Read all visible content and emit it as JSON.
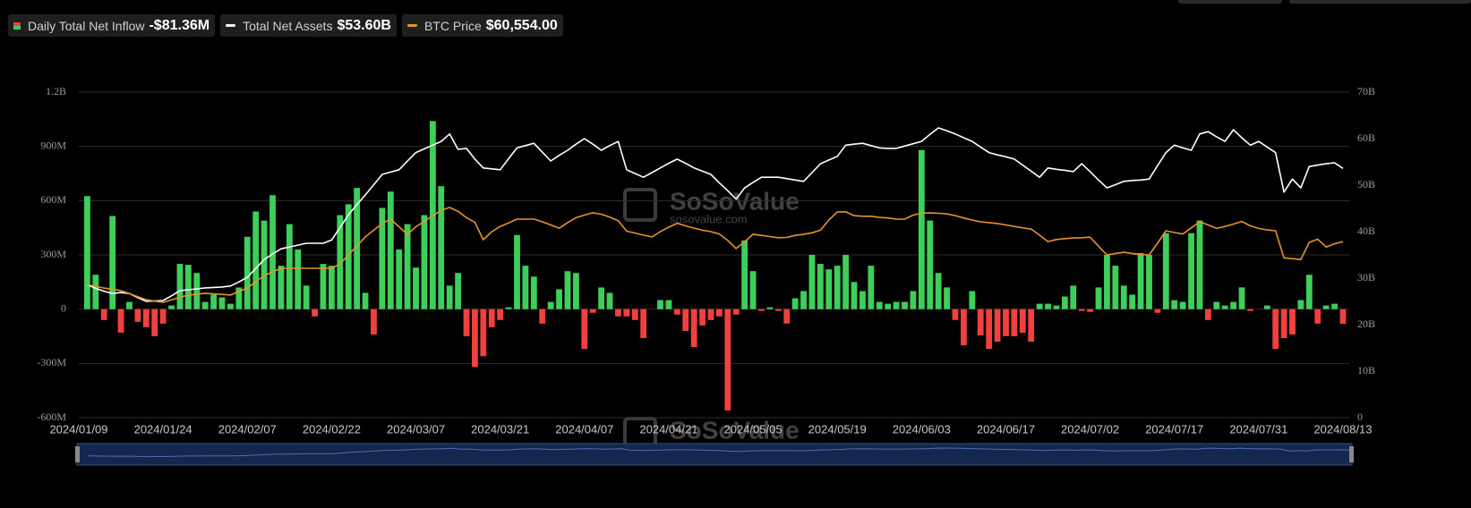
{
  "chart_data": {
    "type": "bar",
    "watermark": {
      "brand": "SoSoValue",
      "url": "sosovalue.com"
    },
    "categories": [
      "2024/01/09",
      null,
      null,
      null,
      null,
      null,
      null,
      null,
      null,
      null,
      "2024/01/24",
      null,
      null,
      null,
      null,
      null,
      null,
      null,
      null,
      null,
      "2024/02/07",
      null,
      null,
      null,
      null,
      null,
      null,
      null,
      null,
      null,
      "2024/02/22",
      null,
      null,
      null,
      null,
      null,
      null,
      null,
      null,
      null,
      "2024/03/07",
      null,
      null,
      null,
      null,
      null,
      null,
      null,
      null,
      null,
      "2024/03/21",
      null,
      null,
      null,
      null,
      null,
      null,
      null,
      null,
      null,
      "2024/04/07",
      null,
      null,
      null,
      null,
      null,
      null,
      null,
      null,
      null,
      "2024/04/21",
      null,
      null,
      null,
      null,
      null,
      null,
      null,
      null,
      null,
      "2024/05/05",
      null,
      null,
      null,
      null,
      null,
      null,
      null,
      null,
      null,
      "2024/05/19",
      null,
      null,
      null,
      null,
      null,
      null,
      null,
      null,
      null,
      "2024/06/03",
      null,
      null,
      null,
      null,
      null,
      null,
      null,
      null,
      null,
      "2024/06/17",
      null,
      null,
      null,
      null,
      null,
      null,
      null,
      null,
      null,
      "2024/07/02",
      null,
      null,
      null,
      null,
      null,
      null,
      null,
      null,
      null,
      "2024/07/17",
      null,
      null,
      null,
      null,
      null,
      null,
      null,
      null,
      null,
      "2024/07/31",
      null,
      null,
      null,
      null,
      null,
      null,
      null,
      null,
      null,
      "2024/08/13"
    ],
    "ylim": [
      -600,
      1200
    ],
    "yticks": [
      {
        "value": 1200,
        "label": "1.2B"
      },
      {
        "value": 900,
        "label": "900M"
      },
      {
        "value": 600,
        "label": "600M"
      },
      {
        "value": 300,
        "label": "300M"
      },
      0,
      {
        "value": -300,
        "label": "-300M"
      },
      {
        "value": -600,
        "label": "-600M"
      }
    ],
    "y2lim": [
      0,
      70
    ],
    "y2ticks": [
      {
        "value": 70,
        "label": "70B"
      },
      {
        "value": 60,
        "label": "60B"
      },
      {
        "value": 50,
        "label": "50B"
      },
      {
        "value": 40,
        "label": "40B"
      },
      {
        "value": 30,
        "label": "30B"
      },
      {
        "value": 20,
        "label": "20B"
      },
      {
        "value": 10,
        "label": "10B"
      },
      0
    ],
    "y3lim": [
      0,
      112000
    ],
    "grid": true,
    "series": [
      {
        "name": "Daily Total Net Inflow",
        "latest_label": "-$81.36M",
        "type": "bar",
        "color": "#3ecf5b",
        "negative_color": "#f0413f",
        "values": [
          null,
          625,
          190,
          -60,
          515,
          -130,
          40,
          -70,
          -100,
          -150,
          -80,
          20,
          250,
          245,
          200,
          40,
          80,
          65,
          30,
          120,
          400,
          540,
          490,
          630,
          240,
          470,
          330,
          130,
          -40,
          250,
          240,
          520,
          580,
          670,
          90,
          -140,
          560,
          650,
          330,
          470,
          230,
          520,
          1040,
          680,
          130,
          200,
          -150,
          -320,
          -260,
          -100,
          -60,
          10,
          410,
          240,
          180,
          -80,
          40,
          110,
          210,
          200,
          -220,
          -20,
          120,
          90,
          -40,
          -40,
          -60,
          -160,
          0,
          50,
          50,
          -30,
          -120,
          -210,
          -90,
          -60,
          -40,
          -560,
          -30,
          380,
          210,
          -10,
          10,
          -10,
          -80,
          60,
          100,
          300,
          250,
          220,
          240,
          300,
          150,
          100,
          240,
          40,
          30,
          40,
          40,
          100,
          880,
          490,
          200,
          120,
          -60,
          -200,
          100,
          -145,
          -220,
          -180,
          -150,
          -150,
          -130,
          -180,
          30,
          30,
          20,
          70,
          130,
          -10,
          -15,
          120,
          300,
          240,
          130,
          80,
          310,
          300,
          -20,
          420,
          50,
          40,
          420,
          490,
          -60,
          40,
          20,
          40,
          120,
          -10,
          0,
          20,
          -220,
          -160,
          -140,
          50,
          190,
          -80,
          20,
          30,
          -81.36
        ]
      },
      {
        "name": "Total Net Assets",
        "latest_label": "$53.60B",
        "type": "line",
        "axis": "y2",
        "color": "#ffffff",
        "values": [
          null,
          28.6,
          27.8,
          27.2,
          26.7,
          26.9,
          26.7,
          25.8,
          25.0,
          25.1,
          25.2,
          26.2,
          27.3,
          27.5,
          27.7,
          27.9,
          28.0,
          28.1,
          28.3,
          29.2,
          30.2,
          32.1,
          34.0,
          35.2,
          36.3,
          36.7,
          37.1,
          37.5,
          37.5,
          37.5,
          38.2,
          40.9,
          43.6,
          45.8,
          47.9,
          50.1,
          52.3,
          52.8,
          53.3,
          55.2,
          57.0,
          57.8,
          58.6,
          59.4,
          61.0,
          57.7,
          57.9,
          55.6,
          53.7,
          53.5,
          53.3,
          55.7,
          58.0,
          58.5,
          59.0,
          57.1,
          55.2,
          56.4,
          57.5,
          58.8,
          60.0,
          58.8,
          57.5,
          58.5,
          59.4,
          53.3,
          52.5,
          51.7,
          52.7,
          53.7,
          54.7,
          55.6,
          54.7,
          53.7,
          53.0,
          52.3,
          50.5,
          48.8,
          47.0,
          49.4,
          50.6,
          51.7,
          51.7,
          51.7,
          51.4,
          51.1,
          50.8,
          52.7,
          54.6,
          55.4,
          56.2,
          58.6,
          58.8,
          59.0,
          58.5,
          58.0,
          57.9,
          57.9,
          58.4,
          58.9,
          59.4,
          60.9,
          62.3,
          61.7,
          61.0,
          60.2,
          59.4,
          58.2,
          57.0,
          56.5,
          56.1,
          55.6,
          54.3,
          53.0,
          51.7,
          53.7,
          53.4,
          53.2,
          52.9,
          54.6,
          52.9,
          51.1,
          49.4,
          50.1,
          50.8,
          51.0,
          51.1,
          51.3,
          54.2,
          57.0,
          58.6,
          58.0,
          57.5,
          61.0,
          61.5,
          60.4,
          59.4,
          61.9,
          60.2,
          58.6,
          59.4,
          58.2,
          57.0,
          48.5,
          51.3,
          49.4,
          54.0,
          54.3,
          54.6,
          54.8,
          53.6
        ]
      },
      {
        "name": "BTC Price",
        "latest_label": "$60,554.00",
        "type": "line",
        "axis": "y3",
        "color": "#e8922a",
        "values": [
          null,
          45800,
          45200,
          44600,
          44200,
          43700,
          42700,
          41600,
          40600,
          40100,
          39700,
          40500,
          41400,
          42200,
          42500,
          42800,
          42600,
          42400,
          42200,
          43400,
          44600,
          46800,
          48900,
          50200,
          51400,
          51400,
          51400,
          51400,
          51400,
          51400,
          51400,
          52900,
          56000,
          59100,
          62200,
          64500,
          66800,
          68300,
          65700,
          63000,
          65700,
          67500,
          69500,
          71400,
          72300,
          71000,
          68800,
          67200,
          61200,
          64000,
          65800,
          67000,
          68300,
          68300,
          68300,
          67400,
          66300,
          65200,
          67100,
          68800,
          69700,
          70500,
          70000,
          69000,
          67800,
          64200,
          63500,
          62800,
          62200,
          64000,
          65500,
          66900,
          66000,
          65200,
          64500,
          64000,
          63200,
          61000,
          58200,
          60500,
          63100,
          62700,
          62300,
          61900,
          62000,
          62700,
          63100,
          63600,
          64500,
          68000,
          70800,
          70800,
          69500,
          69300,
          69300,
          68900,
          68700,
          68300,
          68300,
          69700,
          70300,
          70500,
          70300,
          70100,
          69500,
          68700,
          68000,
          67400,
          67100,
          66800,
          66300,
          65800,
          65300,
          64900,
          62800,
          60600,
          61300,
          61600,
          61800,
          61900,
          62100,
          59000,
          56000,
          56500,
          56900,
          56500,
          56100,
          56000,
          60000,
          64300,
          63700,
          63200,
          65300,
          67400,
          66300,
          65100,
          65800,
          66600,
          67500,
          66000,
          65100,
          64600,
          64300,
          55000,
          54700,
          54400,
          60300,
          61400,
          58700,
          59800,
          60554
        ]
      }
    ]
  }
}
